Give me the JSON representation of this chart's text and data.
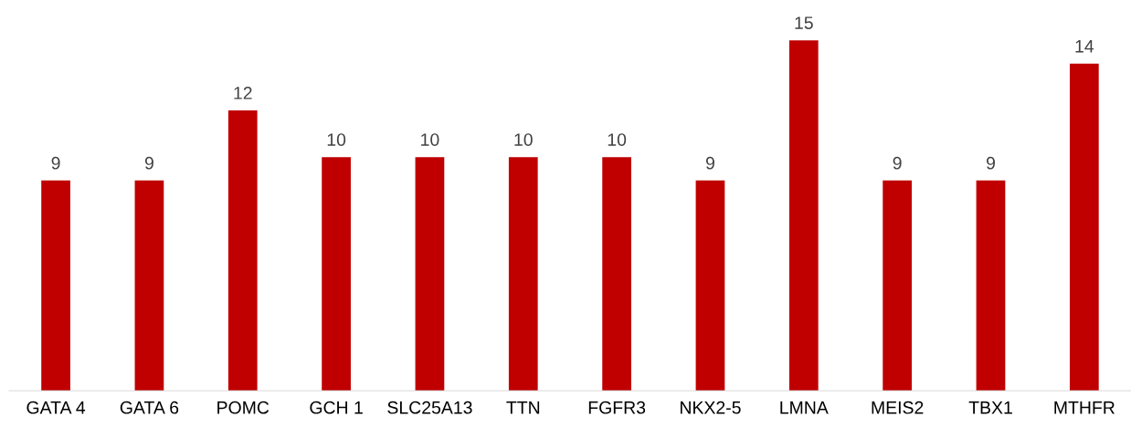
{
  "chart_data": {
    "type": "bar",
    "categories": [
      "GATA 4",
      "GATA 6",
      "POMC",
      "GCH 1",
      "SLC25A13",
      "TTN",
      "FGFR3",
      "NKX2-5",
      "LMNA",
      "MEIS2",
      "TBX1",
      "MTHFR"
    ],
    "values": [
      9,
      9,
      12,
      10,
      10,
      10,
      10,
      9,
      15,
      9,
      9,
      14
    ],
    "color": "#c00000",
    "data_labels": true,
    "grid": false,
    "legend": false
  }
}
